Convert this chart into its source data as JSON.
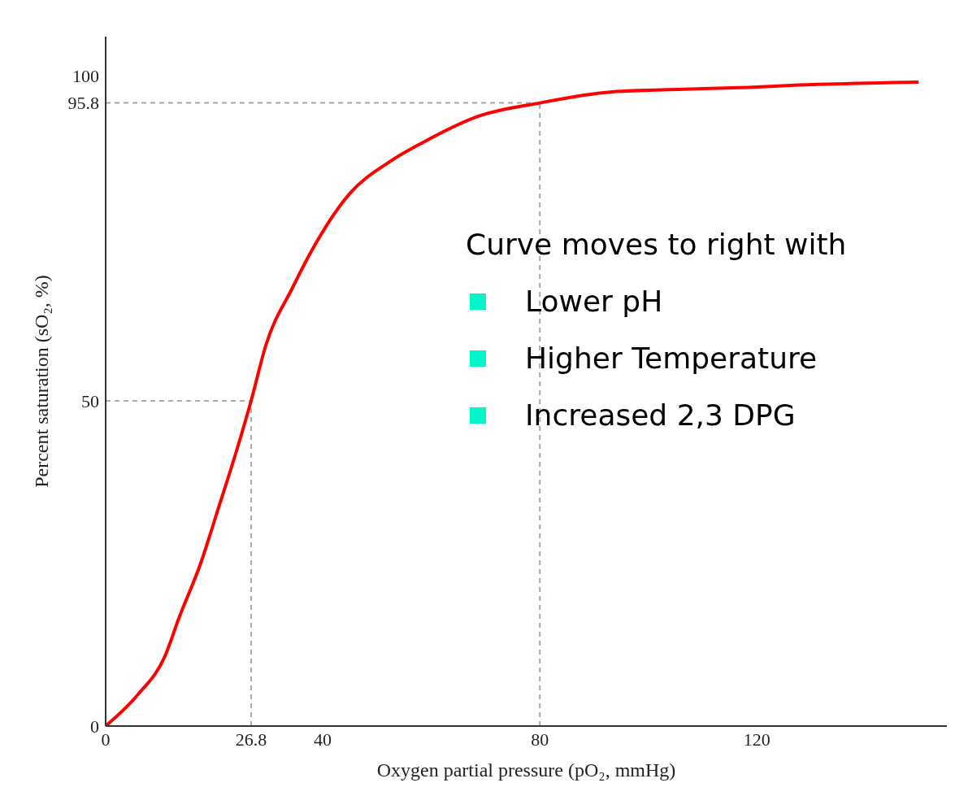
{
  "chart_data": {
    "type": "line",
    "xlabel": "Oxygen partial pressure (pO₂, mmHg)",
    "ylabel": "Percent saturation (sO₂, %)",
    "x": [
      0,
      6.0,
      10.9,
      13.5,
      17.5,
      21.0,
      24.0,
      26.8,
      29.5,
      34.5,
      37.9,
      44.9,
      52.4,
      58.4,
      68.5,
      80,
      93.3,
      106.4,
      118.4,
      126.3,
      149.8
    ],
    "series": [
      {
        "color": "#ff0000",
        "values": [
          0,
          4.9,
          10.7,
          16.6,
          25.0,
          34.1,
          42.0,
          50,
          58.5,
          67.5,
          73.0,
          81.8,
          86.8,
          89.7,
          93.7,
          95.8,
          97.5,
          97.9,
          98.2,
          98.5,
          99.0
        ]
      }
    ],
    "xlim": [
      0,
      155
    ],
    "ylim": [
      0,
      106
    ],
    "xticks": [
      0,
      26.8,
      40,
      80,
      120
    ],
    "yticks": [
      0,
      50,
      95.8,
      100
    ],
    "ref_lines": [
      {
        "axis": "y",
        "value": 50,
        "color": "#aaaaaa",
        "line_style": "dashed"
      },
      {
        "axis": "x",
        "value": 26.8,
        "color": "#aaaaaa",
        "line_style": "dashed"
      },
      {
        "axis": "y",
        "value": 95.8,
        "color": "#aaaaaa",
        "line_style": "dashed"
      },
      {
        "axis": "x",
        "value": 80,
        "color": "#aaaaaa",
        "line_style": "dashed"
      }
    ],
    "annotations": [
      "Curve moves to right with",
      "Lower pH",
      "Higher Temperature",
      "Increased 2,3 DPG"
    ]
  }
}
